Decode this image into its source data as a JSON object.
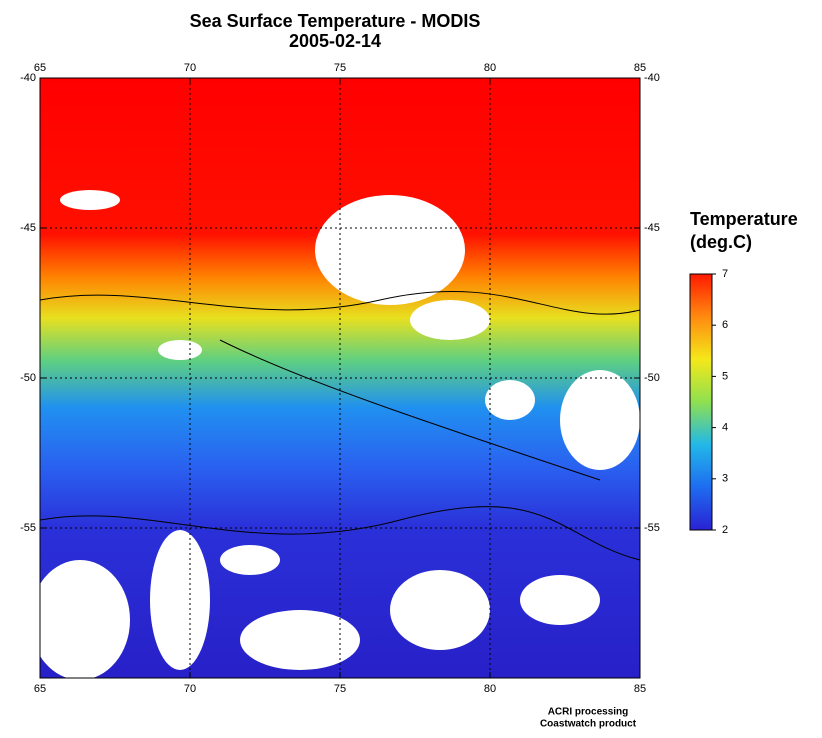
{
  "title": "Sea Surface Temperature - MODIS",
  "subtitle": "2005-02-14",
  "map": {
    "lon_lim": [
      65,
      85
    ],
    "lat_lim": [
      -40,
      -60
    ],
    "lon_ticks": [
      65,
      70,
      75,
      80,
      85
    ],
    "lat_ticks": [
      -40,
      -45,
      -50,
      -55
    ],
    "grid": true
  },
  "colorbar": {
    "title": "Temperature",
    "unit": "(deg.C)",
    "lim": [
      2,
      7
    ],
    "ticks": [
      2,
      3,
      4,
      5,
      6,
      7
    ],
    "colors": [
      "#2a22d4",
      "#1e6cf0",
      "#22b8e8",
      "#8ee050",
      "#f4e81a",
      "#ff8a10",
      "#ff1a00"
    ]
  },
  "footer": [
    "ACRI processing",
    "Coastwatch product"
  ]
}
